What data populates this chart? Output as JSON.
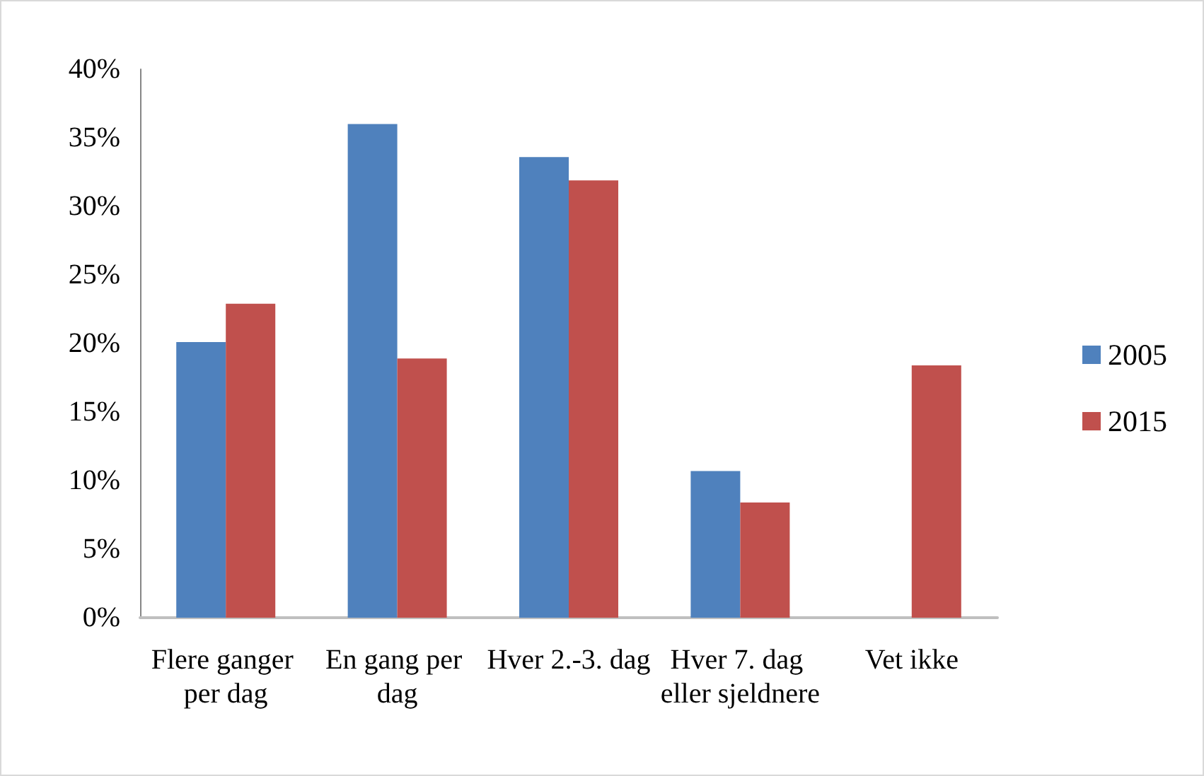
{
  "chart_data": {
    "type": "bar",
    "categories": [
      "Flere ganger per dag",
      "En gang per dag",
      "Hver 2.-3. dag",
      "Hver 7. dag eller sjeldnere",
      "Vet ikke"
    ],
    "series": [
      {
        "name": "2005",
        "color": "#4f81bd",
        "values": [
          20.1,
          36.0,
          33.6,
          10.7,
          null
        ]
      },
      {
        "name": "2015",
        "color": "#c0504d",
        "values": [
          22.9,
          18.9,
          31.9,
          8.4,
          18.4
        ]
      }
    ],
    "ylim": [
      0,
      40
    ],
    "yticks": [
      {
        "value": 0,
        "label": "0%"
      },
      {
        "value": 5,
        "label": "5%"
      },
      {
        "value": 10,
        "label": "10%"
      },
      {
        "value": 15,
        "label": "15%"
      },
      {
        "value": 20,
        "label": "20%"
      },
      {
        "value": 25,
        "label": "25%"
      },
      {
        "value": 30,
        "label": "30%"
      },
      {
        "value": 35,
        "label": "35%"
      },
      {
        "value": 40,
        "label": "40%"
      }
    ],
    "grid": false,
    "legend": "right"
  }
}
